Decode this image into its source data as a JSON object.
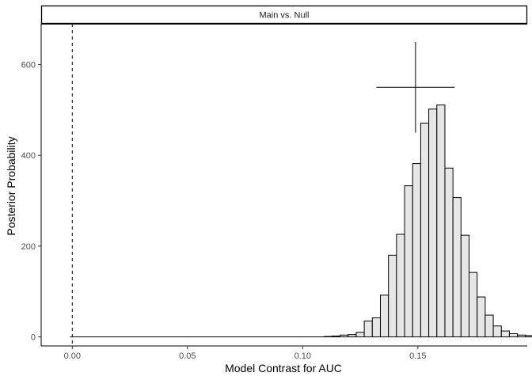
{
  "chart_data": {
    "type": "bar",
    "subtype": "histogram",
    "facet_label": "Main vs. Null",
    "xlabel": "Model Contrast for AUC",
    "ylabel": "Posterior Probability",
    "xlim": [
      -0.0135,
      0.1975
    ],
    "ylim": [
      -20,
      690
    ],
    "x_ticks": [
      0.0,
      0.05,
      0.1,
      0.15
    ],
    "x_tick_labels": [
      "0.00",
      "0.05",
      "0.10",
      "0.15"
    ],
    "y_ticks": [
      0,
      200,
      400,
      600
    ],
    "y_tick_labels": [
      "0",
      "200",
      "400",
      "600"
    ],
    "bin_width": 0.0035,
    "bins": [
      {
        "x": 0.111,
        "count": 1
      },
      {
        "x": 0.1145,
        "count": 2
      },
      {
        "x": 0.118,
        "count": 4
      },
      {
        "x": 0.1215,
        "count": 5
      },
      {
        "x": 0.125,
        "count": 10
      },
      {
        "x": 0.1285,
        "count": 35
      },
      {
        "x": 0.132,
        "count": 42
      },
      {
        "x": 0.1355,
        "count": 92
      },
      {
        "x": 0.139,
        "count": 180
      },
      {
        "x": 0.1425,
        "count": 226
      },
      {
        "x": 0.146,
        "count": 333
      },
      {
        "x": 0.1495,
        "count": 382
      },
      {
        "x": 0.153,
        "count": 471
      },
      {
        "x": 0.1565,
        "count": 502
      },
      {
        "x": 0.16,
        "count": 511
      },
      {
        "x": 0.1635,
        "count": 372
      },
      {
        "x": 0.167,
        "count": 307
      },
      {
        "x": 0.1705,
        "count": 224
      },
      {
        "x": 0.174,
        "count": 142
      },
      {
        "x": 0.1775,
        "count": 88
      },
      {
        "x": 0.181,
        "count": 48
      },
      {
        "x": 0.1845,
        "count": 24
      },
      {
        "x": 0.188,
        "count": 13
      },
      {
        "x": 0.1915,
        "count": 7
      },
      {
        "x": 0.195,
        "count": 4
      },
      {
        "x": 0.1985,
        "count": 3
      }
    ],
    "reference_line": {
      "x": 0.0,
      "style": "dashed"
    },
    "zero_line": {
      "x_start": -0.001,
      "x_end": 0.11,
      "y": 0
    },
    "interval_marker": {
      "center_x": 0.149,
      "center_y": 550,
      "x_low": 0.132,
      "x_high": 0.166,
      "y_low": 450,
      "y_high": 650
    },
    "grid": false,
    "legend": "none"
  }
}
